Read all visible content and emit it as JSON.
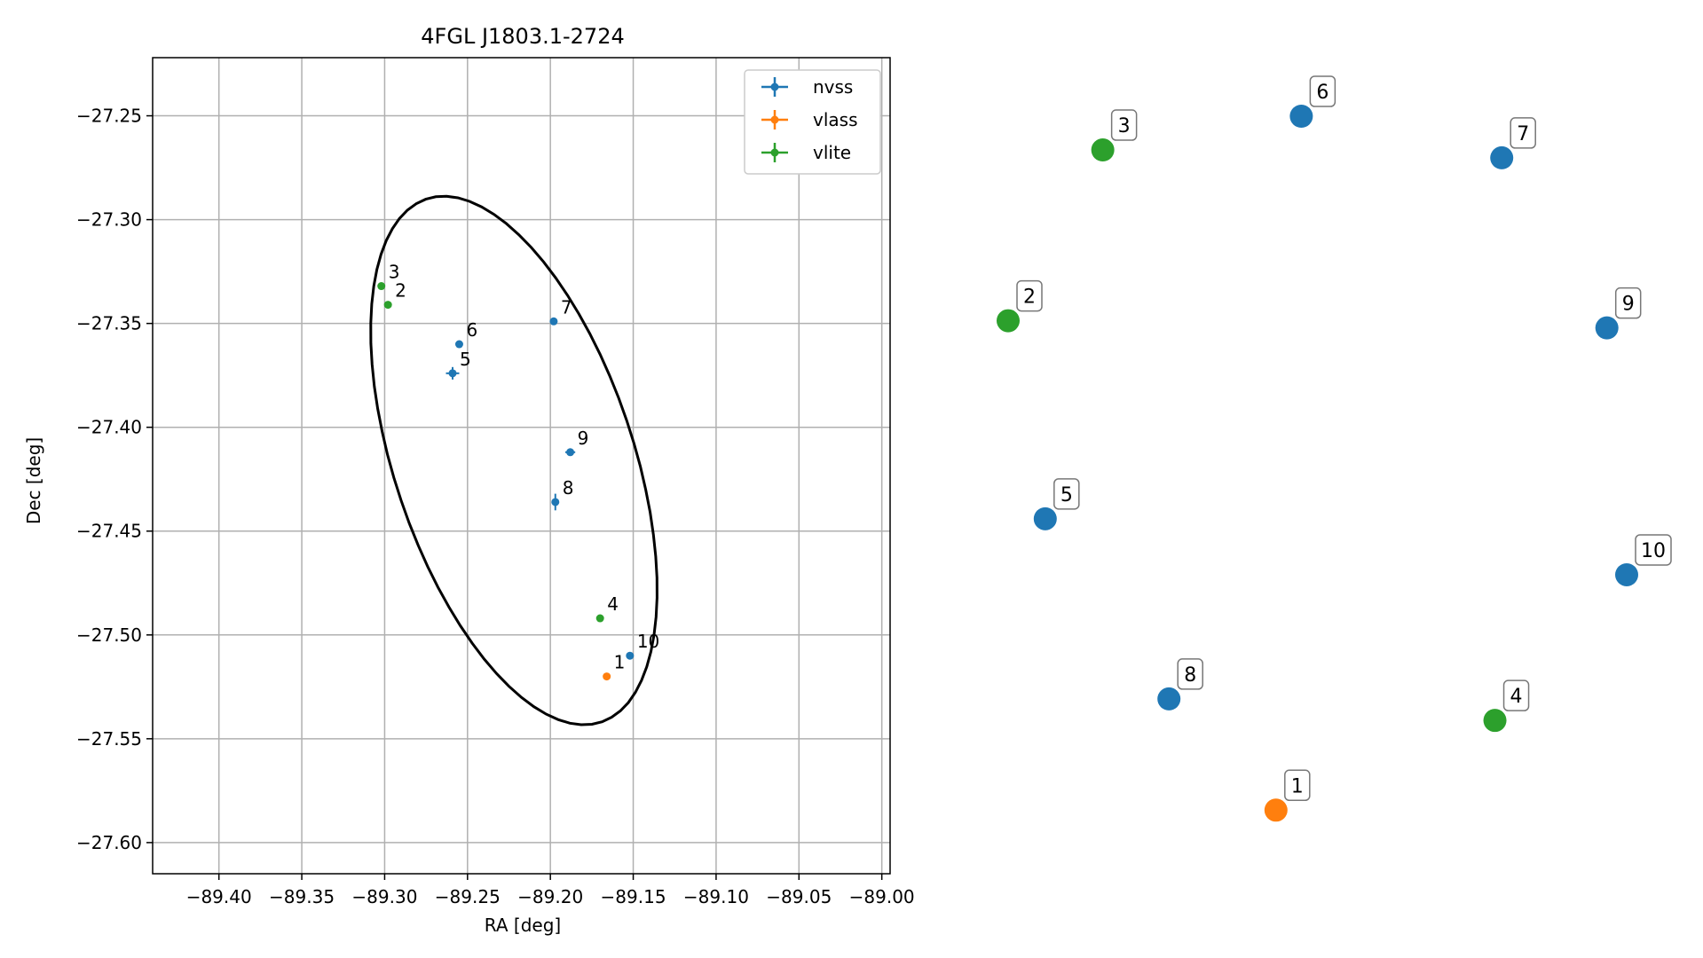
{
  "chart_data": [
    {
      "type": "scatter",
      "title": "4FGL J1803.1-2724",
      "xlabel": "RA [deg]",
      "ylabel": "Dec [deg]",
      "xlim": [
        -89.44,
        -88.995
      ],
      "ylim": [
        -27.615,
        -27.222
      ],
      "xticks": [
        -89.4,
        -89.35,
        -89.3,
        -89.25,
        -89.2,
        -89.15,
        -89.1,
        -89.05,
        -89.0
      ],
      "xtick_labels": [
        "−89.40",
        "−89.35",
        "−89.30",
        "−89.25",
        "−89.20",
        "−89.15",
        "−89.10",
        "−89.05",
        "−89.00"
      ],
      "yticks": [
        -27.25,
        -27.3,
        -27.35,
        -27.4,
        -27.45,
        -27.5,
        -27.55,
        -27.6
      ],
      "ytick_labels": [
        "−27.25",
        "−27.30",
        "−27.35",
        "−27.40",
        "−27.45",
        "−27.50",
        "−27.55",
        "−27.60"
      ],
      "grid": true,
      "legend_position": "top-right",
      "series": [
        {
          "name": "nvss",
          "color": "#1f77b4"
        },
        {
          "name": "vlass",
          "color": "#ff7f0e"
        },
        {
          "name": "vlite",
          "color": "#2ca02c"
        }
      ],
      "points": [
        {
          "label": "1",
          "series": "vlass",
          "ra": -89.166,
          "dec": -27.52,
          "ra_err": 0.0,
          "dec_err": 0.0
        },
        {
          "label": "2",
          "series": "vlite",
          "ra": -89.298,
          "dec": -27.341,
          "ra_err": 0.0,
          "dec_err": 0.0
        },
        {
          "label": "3",
          "series": "vlite",
          "ra": -89.302,
          "dec": -27.332,
          "ra_err": 0.0,
          "dec_err": 0.0
        },
        {
          "label": "4",
          "series": "vlite",
          "ra": -89.17,
          "dec": -27.492,
          "ra_err": 0.0,
          "dec_err": 0.0
        },
        {
          "label": "5",
          "series": "nvss",
          "ra": -89.259,
          "dec": -27.374,
          "ra_err": 0.004,
          "dec_err": 0.003
        },
        {
          "label": "6",
          "series": "nvss",
          "ra": -89.255,
          "dec": -27.36,
          "ra_err": 0.0,
          "dec_err": 0.0
        },
        {
          "label": "7",
          "series": "nvss",
          "ra": -89.198,
          "dec": -27.349,
          "ra_err": 0.0,
          "dec_err": 0.0
        },
        {
          "label": "8",
          "series": "nvss",
          "ra": -89.197,
          "dec": -27.436,
          "ra_err": 0.0,
          "dec_err": 0.004
        },
        {
          "label": "9",
          "series": "nvss",
          "ra": -89.188,
          "dec": -27.412,
          "ra_err": 0.003,
          "dec_err": 0.0
        },
        {
          "label": "10",
          "series": "nvss",
          "ra": -89.152,
          "dec": -27.51,
          "ra_err": 0.0,
          "dec_err": 0.0
        }
      ],
      "ellipse": {
        "center_ra": -89.222,
        "center_dec": -27.416,
        "semi_major_deg": 0.137,
        "semi_minor_deg": 0.07,
        "angle_deg": 115.5,
        "color": "#000000"
      }
    },
    {
      "type": "scatter",
      "subtype": "graph-layout",
      "title": "",
      "nodes": [
        {
          "label": "1",
          "series": "vlass",
          "color": "#ff7f0e",
          "x": 0.433,
          "y": 0.033
        },
        {
          "label": "2",
          "series": "vlite",
          "color": "#2ca02c",
          "x": 0.0,
          "y": 0.715
        },
        {
          "label": "3",
          "series": "vlite",
          "color": "#2ca02c",
          "x": 0.153,
          "y": 0.953
        },
        {
          "label": "4",
          "series": "vlite",
          "color": "#2ca02c",
          "x": 0.787,
          "y": 0.158
        },
        {
          "label": "5",
          "series": "nvss",
          "color": "#1f77b4",
          "x": 0.06,
          "y": 0.439
        },
        {
          "label": "6",
          "series": "nvss",
          "color": "#1f77b4",
          "x": 0.474,
          "y": 1.0
        },
        {
          "label": "7",
          "series": "nvss",
          "color": "#1f77b4",
          "x": 0.798,
          "y": 0.942
        },
        {
          "label": "8",
          "series": "nvss",
          "color": "#1f77b4",
          "x": 0.26,
          "y": 0.188
        },
        {
          "label": "9",
          "series": "nvss",
          "color": "#1f77b4",
          "x": 0.968,
          "y": 0.705
        },
        {
          "label": "10",
          "series": "nvss",
          "color": "#1f77b4",
          "x": 1.0,
          "y": 0.361
        }
      ]
    }
  ]
}
